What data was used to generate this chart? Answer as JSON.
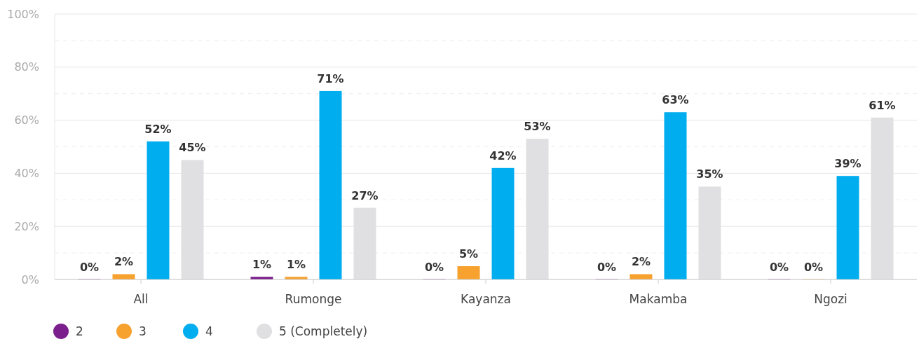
{
  "chart_data": {
    "type": "bar",
    "categories": [
      "All",
      "Rumonge",
      "Kayanza",
      "Makamba",
      "Ngozi"
    ],
    "series": [
      {
        "name": "2",
        "color": "#7b1f8c",
        "values": [
          0,
          1,
          0,
          0,
          0
        ],
        "value_labels": [
          "0%",
          "1%",
          "0%",
          "0%",
          "0%"
        ]
      },
      {
        "name": "3",
        "color": "#f7a12f",
        "values": [
          2,
          1,
          5,
          2,
          0
        ],
        "value_labels": [
          "2%",
          "1%",
          "5%",
          "2%",
          "0%"
        ]
      },
      {
        "name": "4",
        "color": "#00adef",
        "values": [
          52,
          71,
          42,
          63,
          39
        ],
        "value_labels": [
          "52%",
          "71%",
          "42%",
          "63%",
          "39%"
        ]
      },
      {
        "name": "5 (Completely)",
        "color": "#e0e0e2",
        "values": [
          45,
          27,
          53,
          35,
          61
        ],
        "value_labels": [
          "45%",
          "27%",
          "53%",
          "35%",
          "61%"
        ]
      }
    ],
    "ylim": [
      0,
      100
    ],
    "yticks": [
      {
        "value": 0,
        "label": "0%"
      },
      {
        "value": 10,
        "label": null
      },
      {
        "value": 20,
        "label": "20%"
      },
      {
        "value": 30,
        "label": null
      },
      {
        "value": 40,
        "label": "40%"
      },
      {
        "value": 50,
        "label": null
      },
      {
        "value": 60,
        "label": "60%"
      },
      {
        "value": 70,
        "label": null
      },
      {
        "value": 80,
        "label": "80%"
      },
      {
        "value": 90,
        "label": null
      },
      {
        "value": 100,
        "label": "100%"
      }
    ],
    "grid": "y",
    "legend": "bottom left",
    "marker": "circle"
  }
}
